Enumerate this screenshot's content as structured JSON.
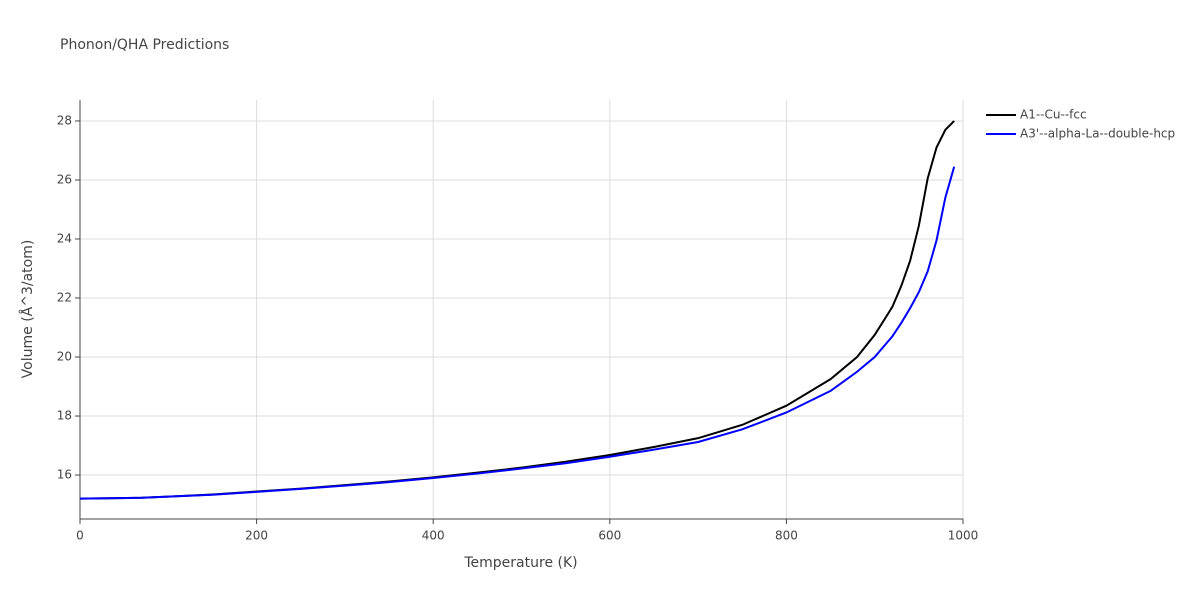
{
  "chart_data": {
    "type": "line",
    "title": "Phonon/QHA Predictions",
    "x_label": "Temperature (K)",
    "y_label": "Volume (Å^3/atom)",
    "x": [
      0,
      70,
      100,
      150,
      200,
      250,
      300,
      350,
      400,
      450,
      500,
      550,
      600,
      650,
      700,
      750,
      800,
      850,
      880,
      900,
      920,
      930,
      940,
      950,
      960,
      970,
      980,
      990
    ],
    "series": [
      {
        "name": "A1--Cu--fcc",
        "color": "#000000",
        "values": [
          15.2,
          15.23,
          15.27,
          15.34,
          15.44,
          15.54,
          15.66,
          15.78,
          15.92,
          16.08,
          16.25,
          16.45,
          16.68,
          16.95,
          17.25,
          17.7,
          18.35,
          19.25,
          20.0,
          20.75,
          21.7,
          22.4,
          23.25,
          24.45,
          26.05,
          27.1,
          27.7,
          28.0
        ]
      },
      {
        "name": "A3'--alpha-La--double-hcp",
        "color": "#0000ff",
        "values": [
          15.2,
          15.23,
          15.27,
          15.33,
          15.43,
          15.53,
          15.64,
          15.76,
          15.9,
          16.05,
          16.22,
          16.4,
          16.62,
          16.86,
          17.12,
          17.55,
          18.12,
          18.85,
          19.5,
          20.0,
          20.7,
          21.15,
          21.65,
          22.2,
          22.9,
          23.95,
          25.4,
          26.45
        ]
      }
    ],
    "xlim": [
      0,
      1000
    ],
    "xticks": [
      0,
      200,
      400,
      600,
      800,
      1000
    ],
    "ylim": [
      14.51,
      28.71
    ],
    "yticks": [
      16,
      18,
      20,
      22,
      24,
      26,
      28
    ],
    "grid": true,
    "legend": "top-right"
  }
}
